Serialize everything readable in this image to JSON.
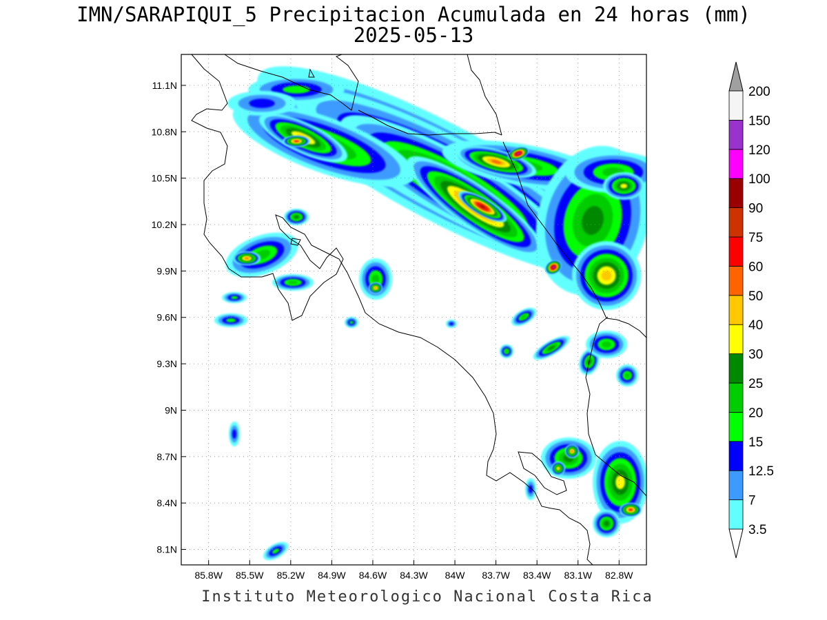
{
  "header": {
    "title": "IMN/SARAPIQUI_5 Precipitacion Acumulada en 24 horas (mm)",
    "date": "2025-05-13"
  },
  "footer": {
    "credit": "Instituto Meteorologico Nacional Costa Rica"
  },
  "map": {
    "lon_range": [
      -86.0,
      -82.6
    ],
    "lat_range": [
      8.0,
      11.3
    ],
    "lon_ticks": [
      {
        "value": -85.8,
        "label": "85.8W"
      },
      {
        "value": -85.5,
        "label": "85.5W"
      },
      {
        "value": -85.2,
        "label": "85.2W"
      },
      {
        "value": -84.9,
        "label": "84.9W"
      },
      {
        "value": -84.6,
        "label": "84.6W"
      },
      {
        "value": -84.3,
        "label": "84.3W"
      },
      {
        "value": -84.0,
        "label": "84W"
      },
      {
        "value": -83.7,
        "label": "83.7W"
      },
      {
        "value": -83.4,
        "label": "83.4W"
      },
      {
        "value": -83.1,
        "label": "83.1W"
      },
      {
        "value": -82.8,
        "label": "82.8W"
      }
    ],
    "lat_ticks": [
      {
        "value": 11.1,
        "label": "11.1N"
      },
      {
        "value": 10.8,
        "label": "10.8N"
      },
      {
        "value": 10.5,
        "label": "10.5N"
      },
      {
        "value": 10.2,
        "label": "10.2N"
      },
      {
        "value": 9.9,
        "label": "9.9N"
      },
      {
        "value": 9.6,
        "label": "9.6N"
      },
      {
        "value": 9.3,
        "label": "9.3N"
      },
      {
        "value": 9.0,
        "label": "9N"
      },
      {
        "value": 8.7,
        "label": "8.7N"
      },
      {
        "value": 8.4,
        "label": "8.4N"
      },
      {
        "value": 8.1,
        "label": "8.1N"
      }
    ],
    "grid": true
  },
  "colorbar": {
    "levels": [
      {
        "label": "3.5",
        "color": "#62ffff"
      },
      {
        "label": "7",
        "color": "#3d9bff"
      },
      {
        "label": "12.5",
        "color": "#0000ff"
      },
      {
        "label": "15",
        "color": "#00ff00"
      },
      {
        "label": "20",
        "color": "#00cc00"
      },
      {
        "label": "25",
        "color": "#008800"
      },
      {
        "label": "30",
        "color": "#ffff00"
      },
      {
        "label": "40",
        "color": "#ffc800"
      },
      {
        "label": "50",
        "color": "#ff6400"
      },
      {
        "label": "60",
        "color": "#ff0000"
      },
      {
        "label": "75",
        "color": "#cc3300"
      },
      {
        "label": "90",
        "color": "#990000"
      },
      {
        "label": "100",
        "color": "#ff00ff"
      },
      {
        "label": "120",
        "color": "#9933cc"
      },
      {
        "label": "150",
        "color": "#f5f5f5"
      },
      {
        "label": "200",
        "color": "#a0a0a0"
      }
    ],
    "under_color": "#ffffff",
    "over_color": "#a0a0a0"
  }
}
